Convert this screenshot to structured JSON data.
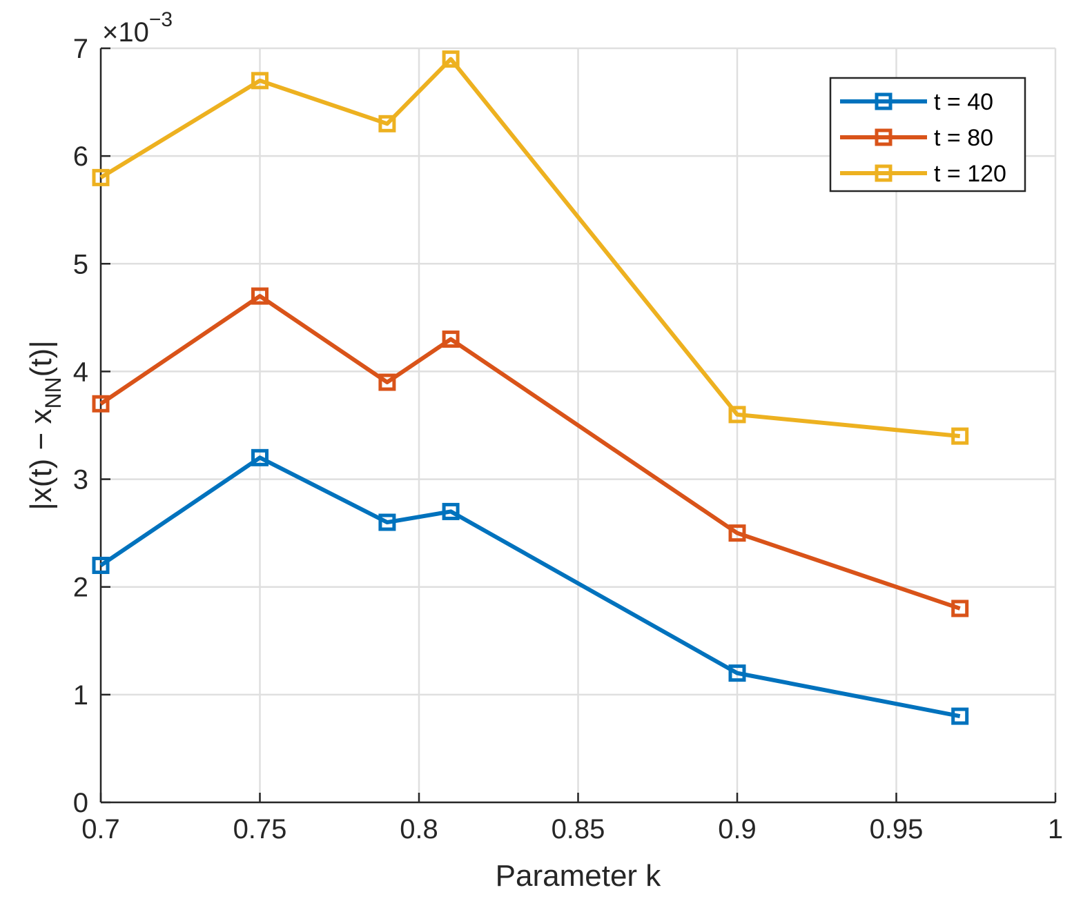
{
  "chart_data": {
    "type": "line",
    "title": "",
    "xlabel": "Parameter k",
    "ylabel_main": "|x(t) − x",
    "ylabel_sub": "NN",
    "ylabel_end": "(t)|",
    "exponent_base": "×10",
    "exponent_power": "−3",
    "xlim": [
      0.7,
      1.0
    ],
    "ylim": [
      0,
      7
    ],
    "x_ticks": [
      0.7,
      0.75,
      0.8,
      0.85,
      0.9,
      0.95,
      1.0
    ],
    "x_tick_labels": [
      "0.7",
      "0.75",
      "0.8",
      "0.85",
      "0.9",
      "0.95",
      "1"
    ],
    "y_ticks": [
      0,
      1,
      2,
      3,
      4,
      5,
      6,
      7
    ],
    "y_tick_labels": [
      "0",
      "1",
      "2",
      "3",
      "4",
      "5",
      "6",
      "7"
    ],
    "y_scale_factor": "1e-3",
    "grid": true,
    "legend_position": "top-right",
    "x": [
      0.7,
      0.75,
      0.79,
      0.81,
      0.9,
      0.97
    ],
    "series": [
      {
        "name": "t = 40",
        "color": "#0072BD",
        "values": [
          2.2,
          3.2,
          2.6,
          2.7,
          1.2,
          0.8
        ]
      },
      {
        "name": "t = 80",
        "color": "#D95319",
        "values": [
          3.7,
          4.7,
          3.9,
          4.3,
          2.5,
          1.8
        ]
      },
      {
        "name": "t = 120",
        "color": "#EDB120",
        "values": [
          5.8,
          6.7,
          6.3,
          6.9,
          3.6,
          3.4
        ]
      }
    ]
  }
}
